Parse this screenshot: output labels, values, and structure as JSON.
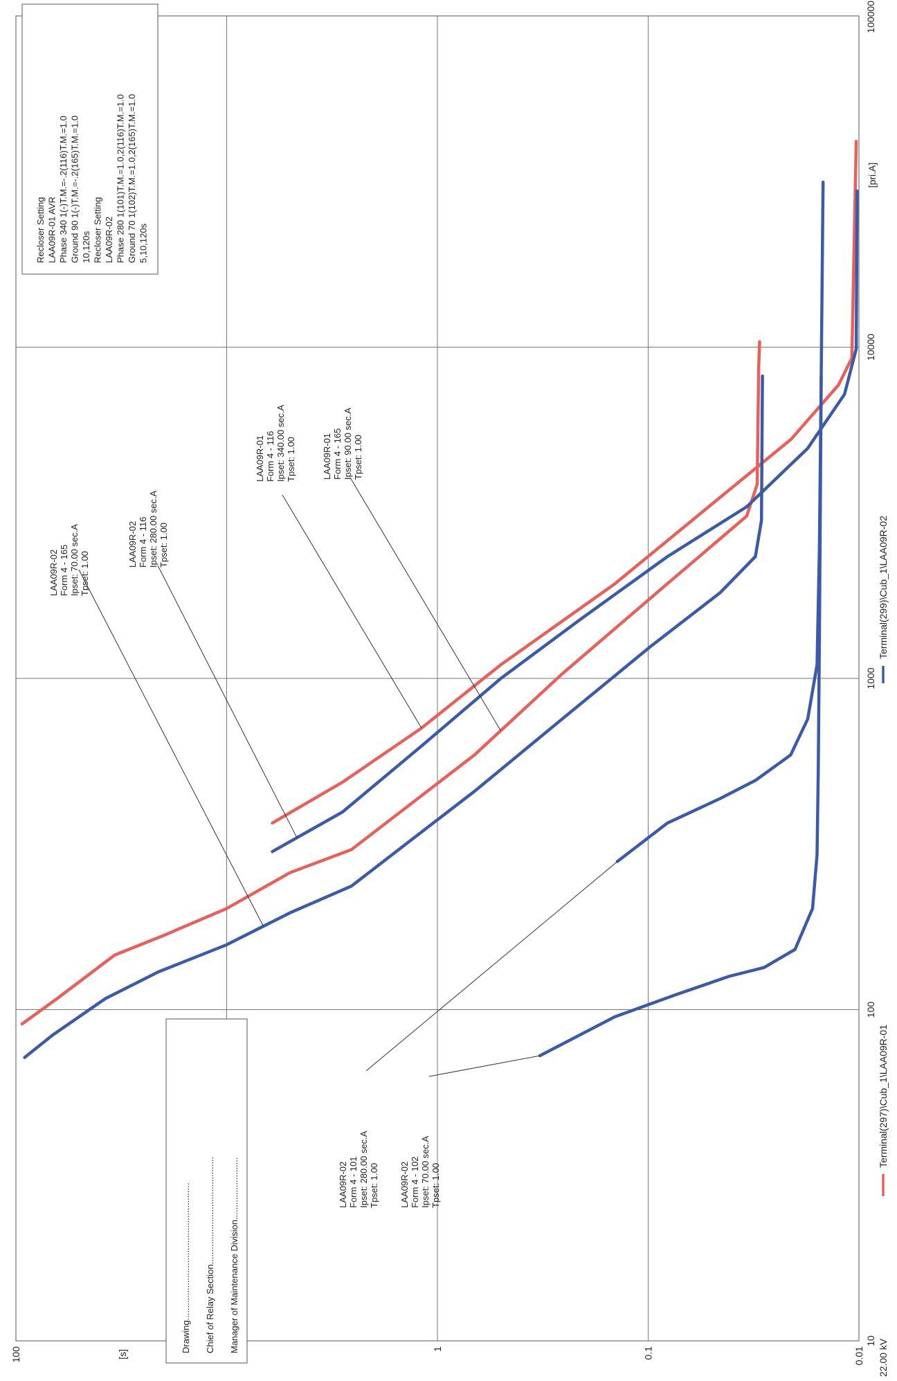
{
  "chart_data": {
    "type": "line",
    "xlim": [
      10,
      100000
    ],
    "xticks": [
      10,
      100,
      1000,
      10000,
      100000
    ],
    "xscale": "log",
    "ylim": [
      0.01,
      100
    ],
    "yticks": [
      100,
      10,
      1,
      0.1,
      0.01
    ],
    "yscale": "log",
    "grid": true,
    "y_label": "[s]",
    "x_label": "[pri.A]",
    "voltage": "22.00 kV",
    "series": [
      {
        "name": "Terminal(297)\\Cub_1\\LAA09R-01",
        "color": "#e8605a",
        "curves": [
          {
            "x": [
              90.5,
              108,
              146,
              167,
              202,
              259,
              304,
              403,
              587,
              1032,
              1932,
              3090,
              3855,
              8710,
              10380
            ],
            "y": [
              93.5,
              63.7,
              34.1,
              20.1,
              10,
              5.01,
              2.56,
              1.44,
              0.668,
              0.256,
              0.081,
              0.0341,
              0.0304,
              0.0299,
              0.0296
            ]
          },
          {
            "x": [
              366,
              486,
              708,
              1100,
              1930,
              3190,
              5270,
              7690,
              9270,
              41800
            ],
            "y": [
              6.07,
              2.82,
              1.19,
              0.5,
              0.144,
              0.055,
              0.021,
              0.0125,
              0.0108,
              0.0103
            ]
          }
        ]
      },
      {
        "name": "Terminal(299)\\Cub_1\\LAA09R-02",
        "color": "#3b5ba8",
        "curves": [
          {
            "x": [
              71.7,
              83.9,
              108,
              130,
              157,
              196,
              236,
              313,
              456,
              754,
              1245,
              1815,
              2333,
              3000,
              8180
            ],
            "y": [
              90.9,
              66.8,
              37.6,
              21.1,
              10,
              5.01,
              2.56,
              1.44,
              0.668,
              0.256,
              0.098,
              0.0455,
              0.031,
              0.029,
              0.0287
            ]
          },
          {
            "x": [
              300,
              395,
              625,
              1000,
              1503,
              2333,
              3296,
              4950,
              7210,
              9880,
              29600
            ],
            "y": [
              6.07,
              2.82,
              1.19,
              0.5,
              0.211,
              0.081,
              0.0341,
              0.0175,
              0.0117,
              0.0103,
              0.0102
            ]
          },
          {
            "x": [
              280,
              366,
              434,
              492,
              587,
              754,
              1099,
              2485,
              8180,
              31500
            ],
            "y": [
              0.14,
              0.081,
              0.0455,
              0.031,
              0.0211,
              0.0175,
              0.0158,
              0.0154,
              0.0151,
              0.0148
            ]
          },
          {
            "x": [
              72.6,
              95.1,
              111,
              126,
              134,
              152,
              202,
              294,
              518,
              1327,
              8180
            ],
            "y": [
              0.326,
              0.144,
              0.0736,
              0.0414,
              0.0282,
              0.0201,
              0.0166,
              0.0158,
              0.0156,
              0.0154,
              0.0151
            ]
          }
        ]
      }
    ],
    "annotations": [
      {
        "lines": [
          "LAA09R-02",
          "Form 4 - 165",
          "Ipset: 70.00 sec.A",
          "Tpset: 1.00"
        ]
      },
      {
        "lines": [
          "LAA09R-02",
          "Form 4 - 116",
          "Ipset: 280.00 sec.A",
          "Tpset: 1.00"
        ]
      },
      {
        "lines": [
          "LAA09R-01",
          "Form 4 - 116",
          "Ipset: 340.00 sec.A",
          "Tpset: 1.00"
        ]
      },
      {
        "lines": [
          "LAA09R-01",
          "Form 4 - 165",
          "Ipset: 90.00 sec.A",
          "Tpset: 1.00"
        ]
      },
      {
        "lines": [
          "LAA09R-02",
          "Form 4 - 101",
          "Ipset: 280.00 sec.A",
          "Tpset: 1.00"
        ]
      },
      {
        "lines": [
          "LAA09R-02",
          "Form 4 - 102",
          "Ipset: 70.00 sec.A",
          "Tpset: 1.00"
        ]
      }
    ],
    "settings_box": [
      "Recloser Setting",
      "LAA09R-01  AVR",
      "Phase  340 1(-)T.M.=-.2(116)T.M.=1.0",
      "Ground  90 1(-)T.M.=-.2(165)T.M.=1.0",
      "10,120s",
      "Recloser Setting",
      "LAA09R-02",
      "Phase  280 1(101)T.M.=1.0,2(116)T.M.=1.0",
      "Ground  70 1(102)T.M.=1.0,2(165)T.M.=1.0",
      "5,10,120s"
    ],
    "signature_box": [
      "Drawing.......................................................",
      "Chief of Relay Section...........................................",
      "Manager of Maintenance Division........................."
    ]
  }
}
